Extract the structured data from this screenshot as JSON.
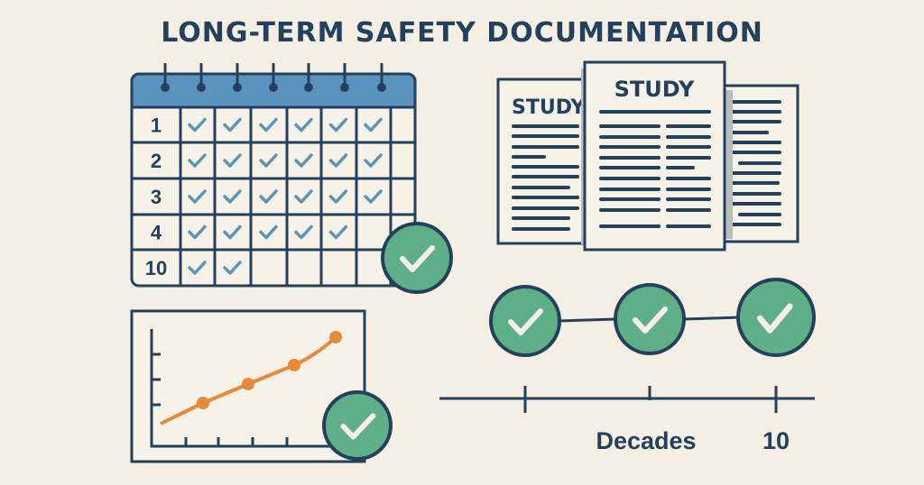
{
  "title": "LONG-TERM SAFETY DOCUMENTATION",
  "colors": {
    "background": "#f5efe3",
    "navy": "#23415e",
    "header_blue": "#5b93bf",
    "check_blue": "#5a96b8",
    "green": "#5faf86",
    "orange": "#e8893a"
  },
  "calendar": {
    "rows": [
      {
        "label": "1",
        "checks": 6
      },
      {
        "label": "2",
        "checks": 6
      },
      {
        "label": "3",
        "checks": 6
      },
      {
        "label": "4",
        "checks": 5
      },
      {
        "label": "10",
        "checks": 2
      }
    ],
    "columns": 7,
    "badge_icon": "check-circle-icon"
  },
  "documents": {
    "left_title": "STUDY",
    "center_title": "STUDY"
  },
  "trend_chart": {
    "badge_icon": "check-circle-icon"
  },
  "timeline": {
    "label": "Decades",
    "end_label": "10",
    "milestones": 3,
    "milestone_icon": "check-circle-icon"
  }
}
